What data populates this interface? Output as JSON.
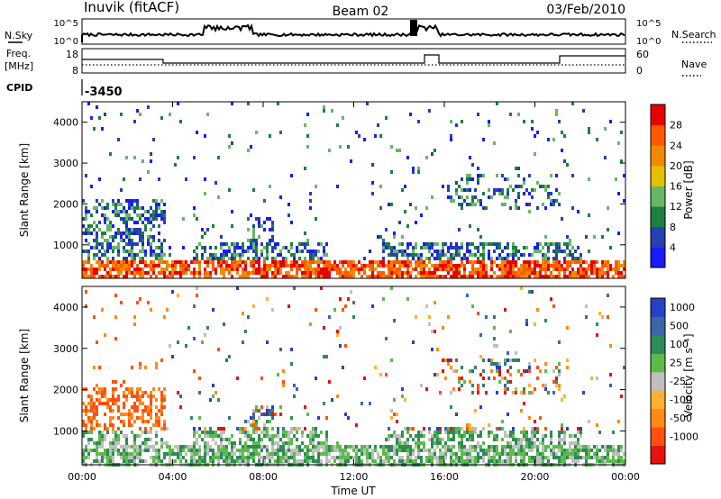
{
  "header": {
    "station": "Inuvik  (fitACF)",
    "beam": "Beam 02",
    "date": "03/Feb/2010"
  },
  "chart_data": [
    {
      "type": "line",
      "panel": "noise",
      "left_label": "N.Sky",
      "right_label": "N.Search",
      "left_ticks": [
        "10^5",
        "10^0"
      ],
      "right_ticks": [
        "10^5",
        "10^0"
      ],
      "series": [
        {
          "name": "N.Sky",
          "style": "solid"
        },
        {
          "name": "N.Search",
          "style": "dotted"
        }
      ]
    },
    {
      "type": "line",
      "panel": "frequency",
      "left_label_line1": "Freq.",
      "left_label_line2": "[MHz]",
      "right_label": "Nave",
      "left_ticks": [
        "18",
        "8"
      ],
      "right_ticks": [
        "60",
        "0"
      ],
      "series": [
        {
          "name": "Freq.",
          "style": "solid"
        },
        {
          "name": "Nave",
          "style": "dotted"
        }
      ]
    },
    {
      "type": "table",
      "panel": "cpid",
      "label": "CPID",
      "value": "-3450"
    },
    {
      "type": "heatmap",
      "panel": "power",
      "ylabel": "Slant Range [km]",
      "y_ticks": [
        "1000",
        "2000",
        "3000",
        "4000"
      ],
      "ylim": [
        180,
        4500
      ],
      "colorbar_label": "Power [dB]",
      "colorbar_ticks": [
        "4",
        "8",
        "12",
        "16",
        "20",
        "24",
        "28"
      ],
      "colorbar_colors": [
        "#1a1aff",
        "#2540b0",
        "#1d8040",
        "#66b866",
        "#e6c000",
        "#f08a00",
        "#ff5a00",
        "#e80000"
      ],
      "range": [
        0,
        32
      ]
    },
    {
      "type": "heatmap",
      "panel": "velocity",
      "ylabel": "Slant Range [km]",
      "y_ticks": [
        "1000",
        "2000",
        "3000",
        "4000"
      ],
      "ylim": [
        180,
        4500
      ],
      "xlabel": "Time UT",
      "x_ticks": [
        "00:00",
        "04:00",
        "08:00",
        "12:00",
        "16:00",
        "20:00",
        "00:00"
      ],
      "colorbar_label": "Velocity  [m s⁻¹]",
      "colorbar_ticks": [
        "1000",
        "500",
        "100",
        "25",
        "-25",
        "-100",
        "-500",
        "-1000"
      ],
      "colorbar_colors": [
        "#2840c8",
        "#3a66a8",
        "#2e8a58",
        "#5cbc48",
        "#bfbfbf",
        "#ffb030",
        "#ff8a14",
        "#ff5010",
        "#e81010"
      ],
      "range": [
        -1200,
        1200
      ]
    }
  ]
}
